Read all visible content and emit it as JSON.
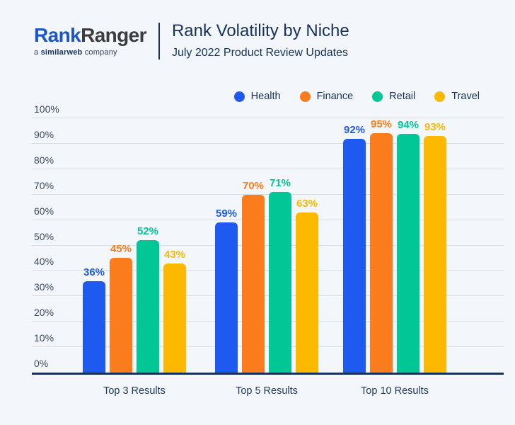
{
  "header": {
    "logo": {
      "brand_part1": "Rank",
      "brand_part2": "Ranger",
      "tagline_prefix": "a",
      "tagline_brand": "similarweb",
      "tagline_suffix": "company"
    },
    "title": "Rank Volatility by Niche",
    "subtitle": "July 2022 Product Review Updates"
  },
  "colors": {
    "background": "#f3f6fa",
    "navy": "#16325c",
    "gridline": "#d8dce4",
    "logo_blue": "#1d56c9",
    "logo_dark": "#3d3d3f",
    "health_blue": "#1f5af0",
    "finance_orange": "#fb7c1d",
    "retail_teal": "#00c795",
    "travel_yellow": "#fdb800"
  },
  "chart_data": {
    "type": "bar",
    "title": "Rank Volatility by Niche",
    "subtitle": "July 2022 Product Review Updates",
    "categories": [
      "Top 3 Results",
      "Top 5 Results",
      "Top 10 Results"
    ],
    "series": [
      {
        "name": "Health",
        "color": "#1f5af0",
        "values": [
          36,
          59,
          92
        ]
      },
      {
        "name": "Finance",
        "color": "#fb7c1d",
        "values": [
          45,
          70,
          95
        ]
      },
      {
        "name": "Retail",
        "color": "#00c795",
        "values": [
          52,
          71,
          94
        ]
      },
      {
        "name": "Travel",
        "color": "#fdb800",
        "values": [
          43,
          63,
          93
        ]
      }
    ],
    "value_suffix": "%",
    "ylim": [
      0,
      100
    ],
    "ytick_step": 10,
    "ytick_labels": [
      "0%",
      "10%",
      "20%",
      "30%",
      "40%",
      "50%",
      "60%",
      "70%",
      "80%",
      "90%",
      "100%"
    ],
    "grid": true,
    "legend_position": "top-right",
    "bar_value_labels": true
  }
}
